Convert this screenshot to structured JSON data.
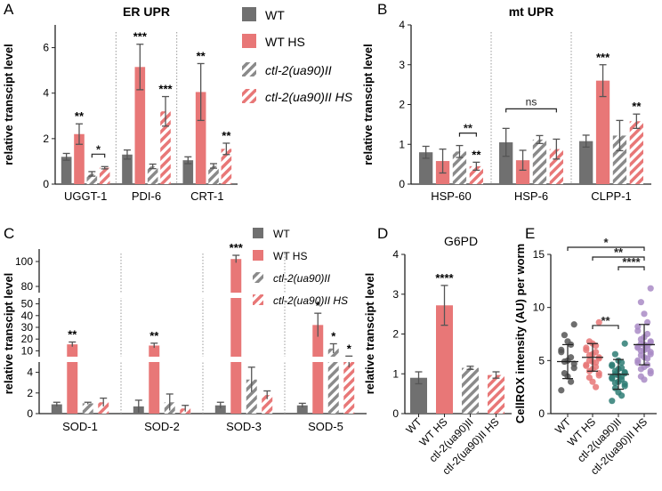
{
  "colors": {
    "wt": "#707070",
    "wths": "#e87777",
    "mut": "#8a8a8a",
    "muths": "#e87777",
    "axis": "#222222",
    "mutdot": "#2e7d74",
    "muthsdot": "#a98bc6"
  },
  "chart_data": [
    {
      "panel": "A",
      "type": "bar",
      "title": "ER UPR",
      "ylabel": "relative transcipt level",
      "ylim": [
        0,
        7
      ],
      "yticks": [
        0,
        2,
        4,
        6
      ],
      "categories": [
        "UGGT-1",
        "PDI-6",
        "CRT-1"
      ],
      "series": [
        {
          "name": "WT",
          "values": [
            1.2,
            1.3,
            1.05
          ],
          "errors": [
            0.15,
            0.2,
            0.15
          ]
        },
        {
          "name": "WT HS",
          "values": [
            2.2,
            5.15,
            4.05
          ],
          "errors": [
            0.45,
            1.0,
            1.25
          ]
        },
        {
          "name": "ctl-2(ua90)II",
          "values": [
            0.45,
            0.78,
            0.8
          ],
          "errors": [
            0.1,
            0.1,
            0.1
          ]
        },
        {
          "name": "ctl-2(ua90)II HS",
          "values": [
            0.72,
            3.2,
            1.55
          ],
          "errors": [
            0.05,
            0.65,
            0.25
          ]
        }
      ],
      "stars": [
        [
          "",
          "**",
          "",
          ""
        ],
        [
          "",
          "***",
          "",
          "***"
        ],
        [
          "",
          "**",
          "",
          "**"
        ]
      ],
      "brackets": [
        {
          "category": 0,
          "from": 2,
          "to": 3,
          "label": "*"
        }
      ]
    },
    {
      "panel": "B",
      "type": "bar",
      "title": "mt UPR",
      "ylabel": "relative transcipt level",
      "ylim": [
        0,
        4
      ],
      "yticks": [
        0,
        1,
        2,
        3,
        4
      ],
      "categories": [
        "HSP-60",
        "HSP-6",
        "CLPP-1"
      ],
      "series": [
        {
          "name": "WT",
          "values": [
            0.8,
            1.05,
            1.08
          ],
          "errors": [
            0.15,
            0.35,
            0.15
          ]
        },
        {
          "name": "WT HS",
          "values": [
            0.58,
            0.6,
            2.6
          ],
          "errors": [
            0.3,
            0.25,
            0.4
          ]
        },
        {
          "name": "ctl-2(ua90)II",
          "values": [
            0.82,
            1.12,
            1.22
          ],
          "errors": [
            0.15,
            0.1,
            0.38
          ]
        },
        {
          "name": "ctl-2(ua90)II HS",
          "values": [
            0.45,
            0.88,
            1.58
          ],
          "errors": [
            0.1,
            0.25,
            0.18
          ]
        }
      ],
      "stars": [
        [
          "",
          "",
          "",
          "**"
        ],
        [
          "",
          "",
          "",
          ""
        ],
        [
          "",
          "***",
          "",
          "**"
        ]
      ],
      "brackets": [
        {
          "category": 0,
          "from": 2,
          "to": 3,
          "label": "**"
        },
        {
          "category": 1,
          "from": 0,
          "to": 3,
          "label": "ns"
        }
      ]
    },
    {
      "panel": "C",
      "type": "bar",
      "ylabel": "relative transcipt level",
      "axis_break": true,
      "yticks": [
        0,
        2,
        4,
        10,
        20,
        30,
        40,
        50,
        80,
        100
      ],
      "categories": [
        "SOD-1",
        "SOD-2",
        "SOD-3",
        "SOD-5"
      ],
      "series": [
        {
          "name": "WT",
          "values": [
            0.9,
            0.7,
            0.8,
            0.8
          ],
          "errors": [
            0.2,
            0.6,
            0.3,
            0.2
          ]
        },
        {
          "name": "WT HS",
          "values": [
            15.5,
            14.5,
            102,
            32
          ],
          "errors": [
            2,
            2,
            3,
            10
          ]
        },
        {
          "name": "ctl-2(ua90)II",
          "values": [
            1.0,
            1.1,
            3.3,
            12
          ],
          "errors": [
            0.1,
            0.8,
            1.2,
            4
          ]
        },
        {
          "name": "ctl-2(ua90)II HS",
          "values": [
            1.1,
            0.5,
            1.8,
            5
          ],
          "errors": [
            0.4,
            0.3,
            0.4,
            0.5
          ]
        }
      ],
      "stars": [
        [
          "",
          "**",
          "",
          ""
        ],
        [
          "",
          "**",
          "",
          ""
        ],
        [
          "",
          "***",
          "",
          ""
        ],
        [
          "",
          "*",
          "*",
          "*"
        ]
      ]
    },
    {
      "panel": "D",
      "type": "bar",
      "title": "G6PD",
      "ylabel": "relative transcipt level",
      "ylim": [
        0,
        4
      ],
      "yticks": [
        0,
        1,
        2,
        3,
        4
      ],
      "categories": [
        "WT",
        "WT HS",
        "ctl-2(ua90)II",
        "ctl-2(ua90)II HS"
      ],
      "values": [
        0.9,
        2.72,
        1.15,
        0.97
      ],
      "errors": [
        0.15,
        0.5,
        0.04,
        0.08
      ],
      "stars": [
        "",
        "****",
        "",
        ""
      ]
    },
    {
      "panel": "E",
      "type": "scatter",
      "ylabel": "CellROX intensity (AU) per worm",
      "ylim": [
        0,
        15
      ],
      "yticks": [
        0,
        5,
        10,
        15
      ],
      "categories": [
        "WT",
        "WT HS",
        "ctl-2(ua90)II",
        "ctl-2(ua90)II HS"
      ],
      "means": [
        4.9,
        5.3,
        3.7,
        6.5
      ],
      "sd": [
        1.6,
        1.3,
        1.4,
        1.9
      ],
      "points": [
        [
          8.4,
          7.4,
          6.8,
          6.5,
          6.0,
          5.8,
          5.3,
          5.0,
          4.9,
          4.7,
          4.3,
          3.8,
          3.5,
          3.0,
          2.2
        ],
        [
          8.6,
          6.8,
          6.6,
          6.4,
          6.2,
          6.0,
          5.8,
          5.6,
          5.5,
          5.3,
          5.2,
          5.0,
          4.9,
          4.8,
          4.6,
          4.5,
          4.4,
          4.2,
          4.0,
          3.8,
          3.6,
          3.4,
          3.0,
          2.5
        ],
        [
          6.6,
          5.6,
          5.0,
          4.8,
          4.6,
          4.5,
          4.3,
          4.2,
          4.0,
          3.9,
          3.8,
          3.7,
          3.6,
          3.5,
          3.4,
          3.3,
          3.2,
          3.0,
          2.9,
          2.8,
          2.6,
          2.4,
          2.0,
          1.7,
          1.2
        ],
        [
          11.8,
          10.5,
          9.4,
          8.6,
          8.2,
          7.8,
          7.5,
          7.2,
          7.0,
          6.8,
          6.7,
          6.6,
          6.5,
          6.4,
          6.3,
          6.2,
          6.1,
          6.0,
          5.9,
          5.8,
          5.6,
          5.5,
          5.3,
          5.2,
          5.0,
          4.8,
          4.6,
          4.4,
          4.2,
          4.0,
          3.8,
          3.5,
          3.2
        ]
      ],
      "brackets": [
        {
          "from": 0,
          "to": 3,
          "label": "*"
        },
        {
          "from": 1,
          "to": 3,
          "label": "**"
        },
        {
          "from": 2,
          "to": 3,
          "label": "****"
        },
        {
          "from": 1,
          "to": 2,
          "label": "**"
        }
      ]
    }
  ],
  "legend_ab": [
    "WT",
    "WT HS",
    "ctl-2(ua90)II",
    "ctl-2(ua90)II HS"
  ],
  "legend_c": [
    "WT",
    "WT HS",
    "ctl-2(ua90)II",
    "ctl-2(ua90)II HS"
  ],
  "panel_labels": [
    "A",
    "B",
    "C",
    "D",
    "E"
  ]
}
